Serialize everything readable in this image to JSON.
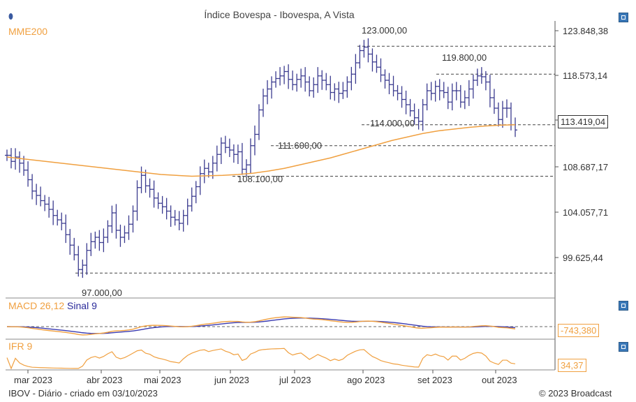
{
  "header": {
    "title": "Índice Bovespa - Ibovespa, A Vista",
    "mme_label": "MME200"
  },
  "price_axis": {
    "ticks": [
      "123.848,38",
      "118.573,14",
      "113.419,04",
      "108.687,17",
      "104.057,71",
      "99.625,44"
    ],
    "last_value": "113.419,04"
  },
  "levels": [
    {
      "label": "123.000,00",
      "value": 123000
    },
    {
      "label": "119.800,00",
      "value": 119800
    },
    {
      "label": "114.000,00",
      "value": 114000
    },
    {
      "label": "111.600,00",
      "value": 111600
    },
    {
      "label": "108.100,00",
      "value": 108100
    },
    {
      "label": "97.000,00",
      "value": 97000
    }
  ],
  "macd": {
    "label": "MACD 26,12",
    "signal_label": "Sinal 9",
    "value": "-743,380"
  },
  "ifr": {
    "label": "IFR 9",
    "value": "34,37"
  },
  "x_axis": {
    "months": [
      "mar 2023",
      "abr 2023",
      "mai 2023",
      "jun 2023",
      "jul 2023",
      "ago 2023",
      "set 2023",
      "out 2023"
    ]
  },
  "footer": {
    "left": "IBOV - Diário - criado em 03/10/2023",
    "right": "© 2023 Broadcast"
  },
  "colors": {
    "price": "#3b3b8f",
    "mme": "#f0a040",
    "macd": "#f0a040",
    "signal": "#3a3ab0",
    "ifr": "#f0a040",
    "grid": "#444444"
  },
  "chart_data": {
    "type": "line",
    "title": "Índice Bovespa - Ibovespa, A Vista",
    "xlabel": "",
    "ylabel": "",
    "ylim": [
      95500,
      125500
    ],
    "price_closes": [
      110500,
      109800,
      110300,
      109600,
      108800,
      107700,
      106400,
      105900,
      105300,
      104900,
      104300,
      103600,
      103100,
      102700,
      101400,
      100200,
      99100,
      97400,
      97900,
      99600,
      100600,
      101100,
      100500,
      101100,
      102400,
      103900,
      101900,
      101100,
      101600,
      102600,
      104100,
      106800,
      108200,
      107000,
      106600,
      105600,
      105000,
      104600,
      104100,
      103400,
      103100,
      102700,
      103600,
      104700,
      105800,
      106900,
      108400,
      109000,
      108600,
      109600,
      110600,
      111900,
      111400,
      111100,
      110600,
      110900,
      108900,
      109400,
      111600,
      112900,
      115700,
      117300,
      118100,
      118900,
      119300,
      119600,
      120100,
      119200,
      118600,
      119200,
      119600,
      118900,
      117900,
      118600,
      119600,
      119100,
      118600,
      117700,
      118100,
      117600,
      117900,
      118900,
      119800,
      121100,
      122500,
      122900,
      122100,
      121200,
      120600,
      119700,
      119100,
      118600,
      117900,
      117600,
      116900,
      116300,
      115600,
      114800,
      114400,
      116300,
      117900,
      117600,
      118400,
      117900,
      117700,
      116600,
      117900,
      117900,
      116600,
      117100,
      118100,
      119100,
      119600,
      119500,
      118900,
      117100,
      115900,
      114600,
      115900,
      115900,
      114000,
      113400
    ],
    "mme200": [
      110300,
      110100,
      109900,
      109700,
      109500,
      109300,
      109100,
      108900,
      108700,
      108500,
      108300,
      108200,
      108100,
      108150,
      108200,
      108300,
      108450,
      108700,
      109000,
      109400,
      109800,
      110200,
      110700,
      111200,
      111700,
      112200,
      112600,
      113000,
      113300,
      113500,
      113700,
      113850,
      113950,
      114000
    ],
    "levels": [
      123000,
      119800,
      114000,
      111600,
      108100,
      97000
    ],
    "macd": {
      "last": -743.38
    },
    "ifr": {
      "last": 34.37
    }
  }
}
